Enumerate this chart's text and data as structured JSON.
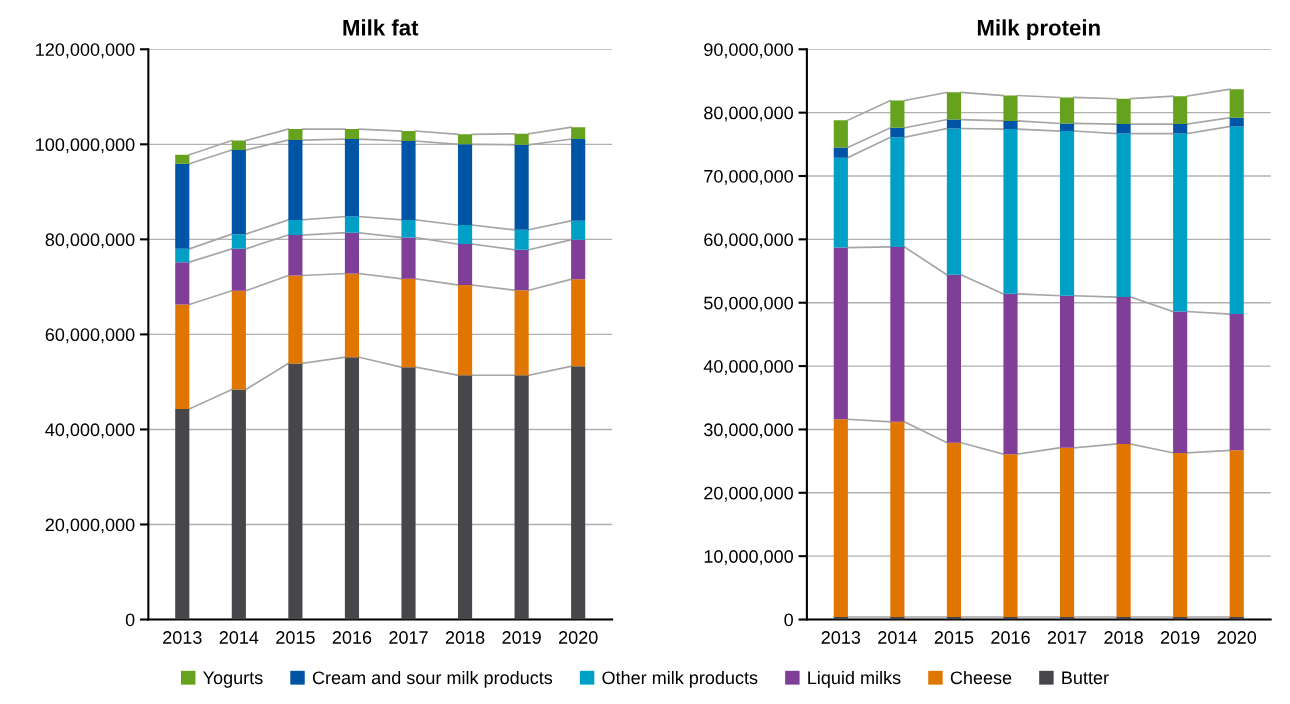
{
  "chart_data": [
    {
      "type": "bar",
      "title": "Milk fat",
      "stacked": true,
      "grid": "y",
      "legend": "bottom",
      "categories": [
        "2013",
        "2014",
        "2015",
        "2016",
        "2017",
        "2018",
        "2019",
        "2020"
      ],
      "ylim": [
        0,
        120000000
      ],
      "yticks": [
        0,
        {
          "value": 20000000,
          "label": "20,000,000"
        },
        {
          "value": 40000000,
          "label": "40,000,000"
        },
        {
          "value": 60000000,
          "label": "60,000,000"
        },
        {
          "value": 80000000,
          "label": "80,000,000"
        },
        {
          "value": 100000000,
          "label": "100,000,000"
        },
        {
          "value": 120000000,
          "label": "120,000,000"
        }
      ],
      "series": [
        {
          "name": "Butter",
          "color": "#46464b",
          "values": [
            44300000,
            48400000,
            53900000,
            55200000,
            53100000,
            51400000,
            51400000,
            53300000
          ]
        },
        {
          "name": "Cheese",
          "color": "#e07500",
          "values": [
            22000000,
            20800000,
            18500000,
            17600000,
            18600000,
            19000000,
            17900000,
            18300000
          ]
        },
        {
          "name": "Liquid milks",
          "color": "#7f3f98",
          "values": [
            8900000,
            8800000,
            8500000,
            8600000,
            8700000,
            8600000,
            8500000,
            8300000
          ]
        },
        {
          "name": "Other milk products",
          "color": "#00a0c6",
          "values": [
            2800000,
            3100000,
            3200000,
            3400000,
            3700000,
            4000000,
            4200000,
            4000000
          ]
        },
        {
          "name": "Cream and sour milk products",
          "color": "#0054a6",
          "values": [
            17900000,
            17700000,
            16800000,
            16300000,
            16600000,
            17000000,
            17900000,
            17200000
          ]
        },
        {
          "name": "Yogurts",
          "color": "#66a21e",
          "values": [
            1900000,
            2000000,
            2300000,
            2100000,
            2100000,
            2100000,
            2300000,
            2500000
          ]
        }
      ]
    },
    {
      "type": "bar",
      "title": "Milk protein",
      "stacked": true,
      "grid": "y",
      "legend": "bottom",
      "categories": [
        "2013",
        "2014",
        "2015",
        "2016",
        "2017",
        "2018",
        "2019",
        "2020"
      ],
      "ylim": [
        0,
        90000000
      ],
      "yticks": [
        0,
        {
          "value": 10000000,
          "label": "10,000,000"
        },
        {
          "value": 20000000,
          "label": "20,000,000"
        },
        {
          "value": 30000000,
          "label": "30,000,000"
        },
        {
          "value": 40000000,
          "label": "40,000,000"
        },
        {
          "value": 50000000,
          "label": "50,000,000"
        },
        {
          "value": 60000000,
          "label": "60,000,000"
        },
        {
          "value": 70000000,
          "label": "70,000,000"
        },
        {
          "value": 80000000,
          "label": "80,000,000"
        },
        {
          "value": 90000000,
          "label": "90,000,000"
        }
      ],
      "series": [
        {
          "name": "Butter",
          "color": "#46464b",
          "values": [
            400000,
            400000,
            400000,
            400000,
            400000,
            400000,
            400000,
            400000
          ]
        },
        {
          "name": "Cheese",
          "color": "#e07500",
          "values": [
            31200000,
            30800000,
            27500000,
            25700000,
            26700000,
            27300000,
            25900000,
            26300000
          ]
        },
        {
          "name": "Liquid milks",
          "color": "#7f3f98",
          "values": [
            27100000,
            27600000,
            26500000,
            25300000,
            24000000,
            23200000,
            22300000,
            21500000
          ]
        },
        {
          "name": "Other milk products",
          "color": "#00a0c6",
          "values": [
            14200000,
            17300000,
            23100000,
            26000000,
            26000000,
            25800000,
            28100000,
            29600000
          ]
        },
        {
          "name": "Cream and sour milk products",
          "color": "#0054a6",
          "values": [
            1600000,
            1500000,
            1400000,
            1300000,
            1200000,
            1500000,
            1500000,
            1400000
          ]
        },
        {
          "name": "Yogurts",
          "color": "#66a21e",
          "values": [
            4300000,
            4300000,
            4300000,
            4000000,
            4100000,
            4000000,
            4400000,
            4500000
          ]
        }
      ]
    }
  ]
}
